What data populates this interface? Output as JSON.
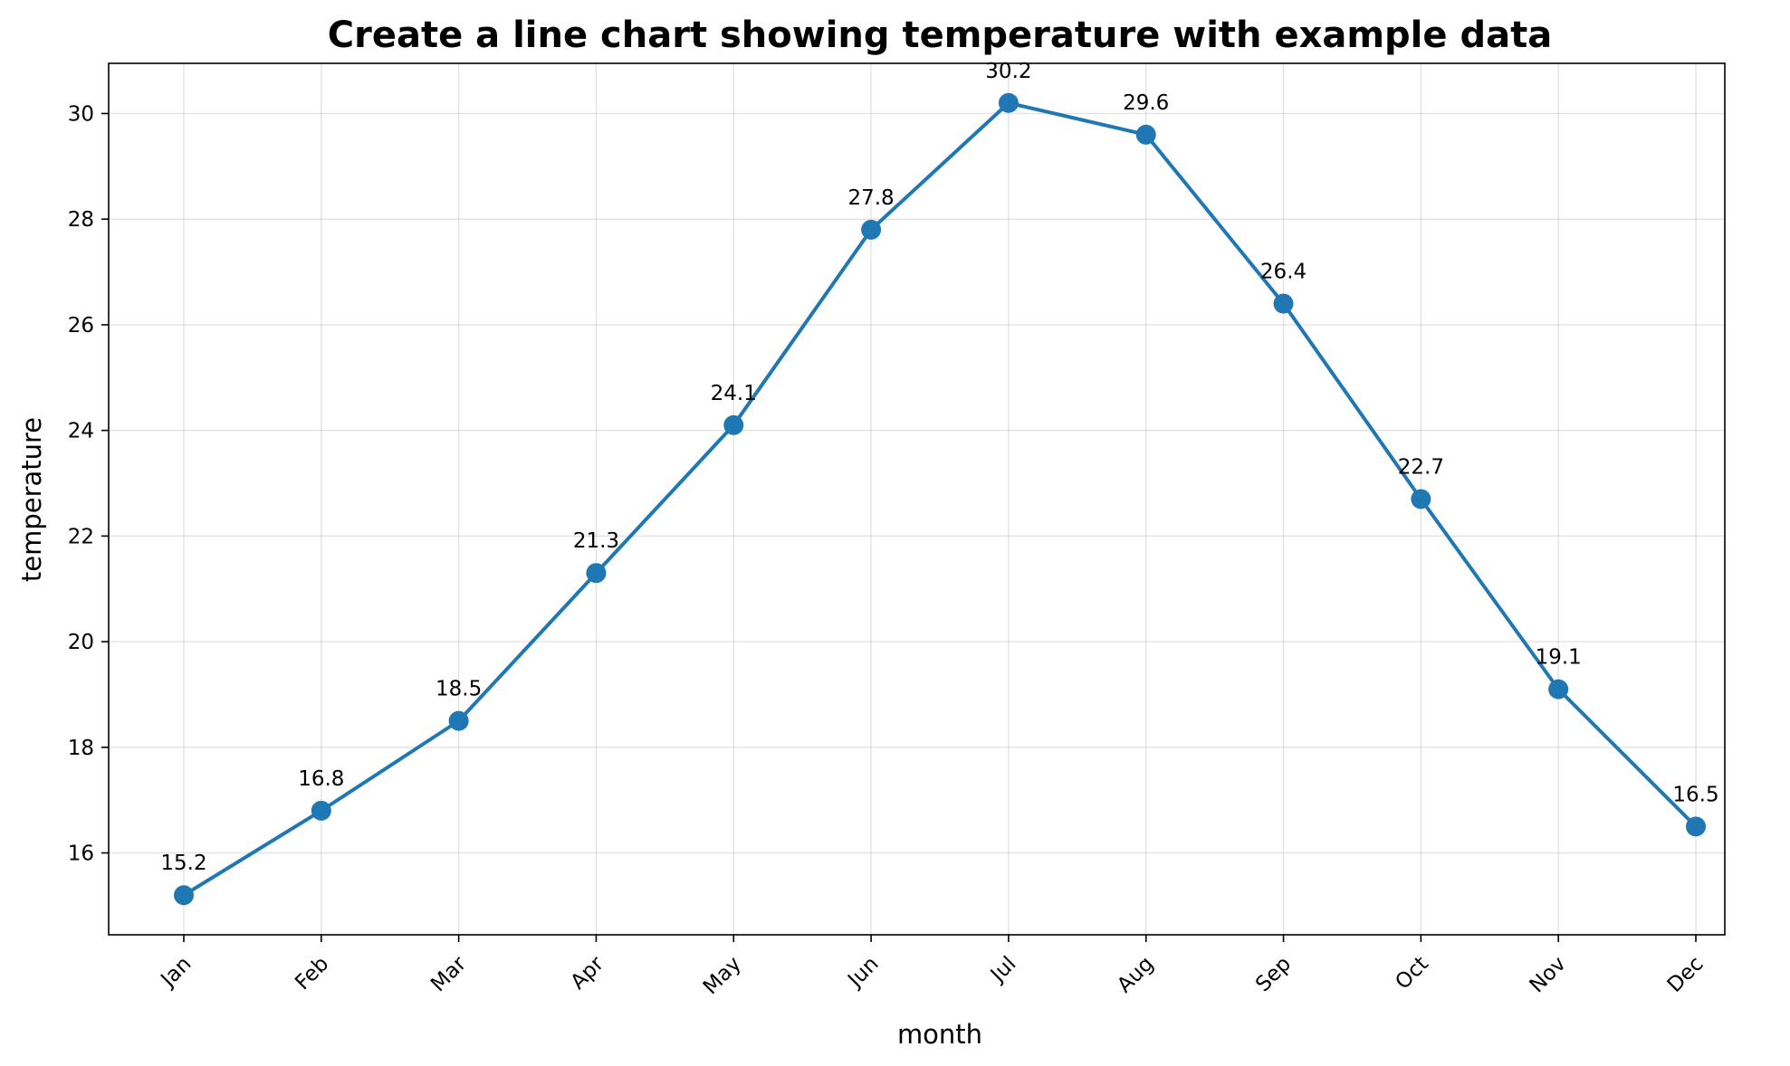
{
  "chart_data": {
    "type": "line",
    "title": "Create a line chart showing temperature with example data",
    "xlabel": "month",
    "ylabel": "temperature",
    "categories": [
      "Jan",
      "Feb",
      "Mar",
      "Apr",
      "May",
      "Jun",
      "Jul",
      "Aug",
      "Sep",
      "Oct",
      "Nov",
      "Dec"
    ],
    "series": [
      {
        "values": [
          15.2,
          16.8,
          18.5,
          21.3,
          24.1,
          27.8,
          30.2,
          29.6,
          26.4,
          22.7,
          19.1,
          16.5
        ],
        "color": "#1f77b4"
      }
    ],
    "data_labels": [
      "15.2",
      "16.8",
      "18.5",
      "21.3",
      "24.1",
      "27.8",
      "30.2",
      "29.6",
      "26.4",
      "22.7",
      "19.1",
      "16.5"
    ],
    "ylim": [
      14.45,
      30.95
    ],
    "yticks": [
      16,
      18,
      20,
      22,
      24,
      26,
      28,
      30
    ],
    "ytick_labels": [
      "16",
      "18",
      "20",
      "22",
      "24",
      "26",
      "28",
      "30"
    ],
    "grid": true,
    "legend": false
  }
}
